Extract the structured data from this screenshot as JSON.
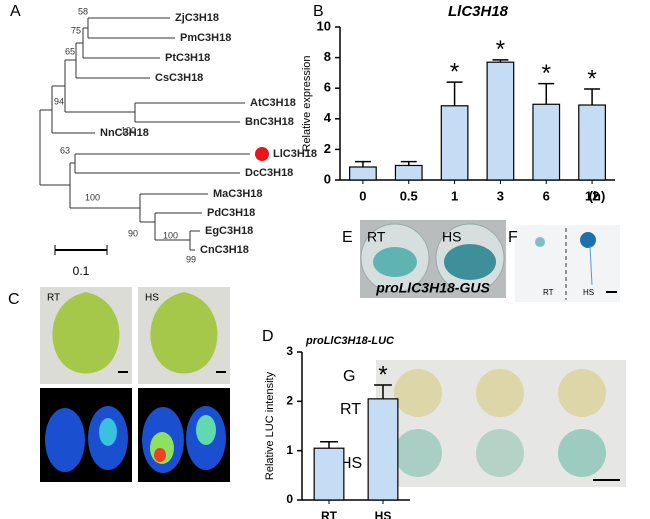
{
  "panels": [
    "A",
    "B",
    "C",
    "D",
    "E",
    "F",
    "G"
  ],
  "tree": {
    "leaves": [
      "ZjC3H18",
      "PmC3H18",
      "PtC3H18",
      "CsC3H18",
      "AtC3H18",
      "BnC3H18",
      "NnC3H18",
      "LlC3H18",
      "DcC3H18",
      "MaC3H18",
      "PdC3H18",
      "EgC3H18",
      "CnC3H18"
    ],
    "bootstrap": [
      58,
      75,
      65,
      94,
      100,
      63,
      100,
      90,
      100,
      99
    ],
    "scale": "0.1"
  },
  "chart_data": [
    {
      "type": "bar",
      "title": "LlC3H18",
      "y_label": "Relative expression",
      "x_unit": "(h)",
      "categories": [
        "0",
        "0.5",
        "1",
        "3",
        "6",
        "12"
      ],
      "values": [
        0.85,
        0.95,
        4.85,
        7.7,
        4.95,
        4.9
      ],
      "errors": [
        0.35,
        0.25,
        1.55,
        0.15,
        1.35,
        1.05
      ],
      "significant": [
        false,
        false,
        true,
        true,
        true,
        true
      ],
      "significance_marker": "*",
      "color": "#c5dcf5",
      "ylim": [
        0,
        10
      ],
      "yticks": [
        0,
        2,
        4,
        6,
        8,
        10
      ]
    },
    {
      "type": "bar",
      "title": "proLlC3H18-LUC",
      "y_label": "Relative LUC intensity",
      "categories": [
        "RT",
        "HS"
      ],
      "values": [
        1.05,
        2.05
      ],
      "errors": [
        0.13,
        0.28
      ],
      "significant": [
        false,
        true
      ],
      "significance_marker": "*",
      "color": "#c5dcf5",
      "ylim": [
        0,
        3
      ],
      "yticks": [
        0,
        1,
        2,
        3
      ]
    }
  ],
  "photos": {
    "C": {
      "labels": [
        "RT",
        "HS"
      ]
    },
    "E": {
      "labels": [
        "RT",
        "HS"
      ],
      "caption": "proLlC3H18-GUS"
    },
    "F": {
      "labels": [
        "RT",
        "HS"
      ]
    },
    "G": {
      "labels": [
        "RT",
        "HS"
      ]
    }
  }
}
